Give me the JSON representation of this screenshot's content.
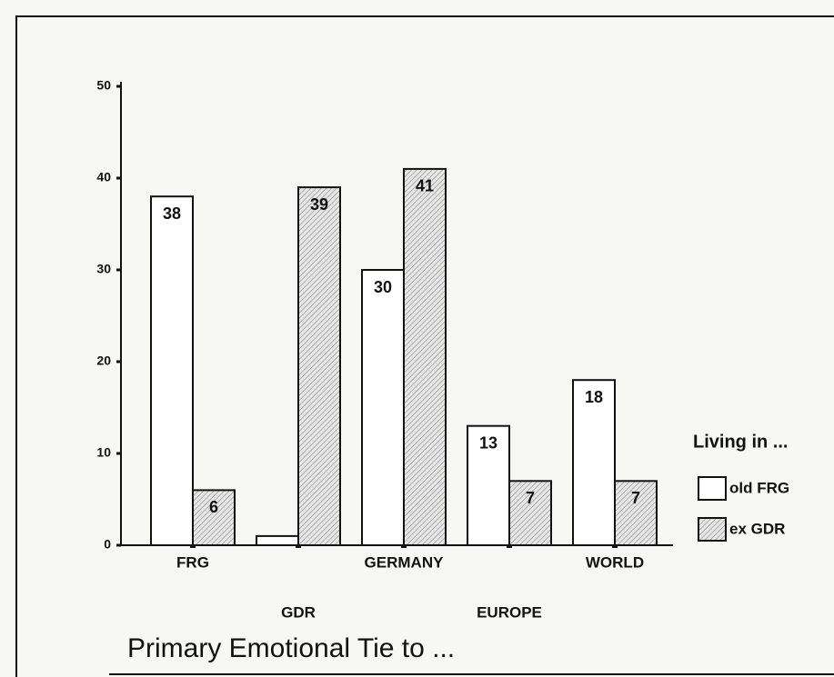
{
  "chart_data": {
    "type": "bar",
    "title": "Primary Emotional Tie to ...",
    "categories": [
      "FRG",
      "GDR",
      "GERMANY",
      "EUROPE",
      "WORLD"
    ],
    "legend_title": "Living in ...",
    "series": [
      {
        "name": "old FRG",
        "color": "#ffffff",
        "values": [
          38,
          1,
          30,
          13,
          18
        ],
        "value_labels": [
          "38",
          null,
          "30",
          "13",
          "18"
        ]
      },
      {
        "name": "ex GDR",
        "color": "#d8d8d8",
        "values": [
          6,
          39,
          41,
          7,
          7
        ],
        "value_labels": [
          "6",
          "39",
          "41",
          "7",
          "7"
        ]
      }
    ],
    "ylim": [
      0,
      50
    ],
    "yticks": [
      0,
      10,
      20,
      30,
      40,
      50
    ],
    "grid": false,
    "legend": "right"
  }
}
